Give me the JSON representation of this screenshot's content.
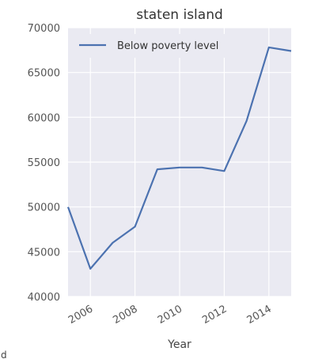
{
  "chart_data": {
    "type": "line",
    "title": "staten island",
    "xlabel": "Year",
    "ylabel": "",
    "x": [
      2005,
      2006,
      2007,
      2008,
      2009,
      2010,
      2011,
      2012,
      2013,
      2014,
      2015
    ],
    "series": [
      {
        "name": "Below poverty level",
        "values": [
          50000,
          43100,
          46000,
          47800,
          54200,
          54400,
          54400,
          54000,
          59600,
          67800,
          67400
        ]
      }
    ],
    "xlim": [
      2005,
      2015
    ],
    "ylim": [
      40000,
      70000
    ],
    "yticks": [
      40000,
      45000,
      50000,
      55000,
      60000,
      65000,
      70000
    ],
    "xticks": [
      2006,
      2008,
      2010,
      2012,
      2014
    ],
    "grid": true,
    "legend_position": "top-left",
    "colors": {
      "line": "#4c72b0",
      "background": "#eaeaf2",
      "grid": "#ffffff"
    }
  },
  "stray_text": "d"
}
